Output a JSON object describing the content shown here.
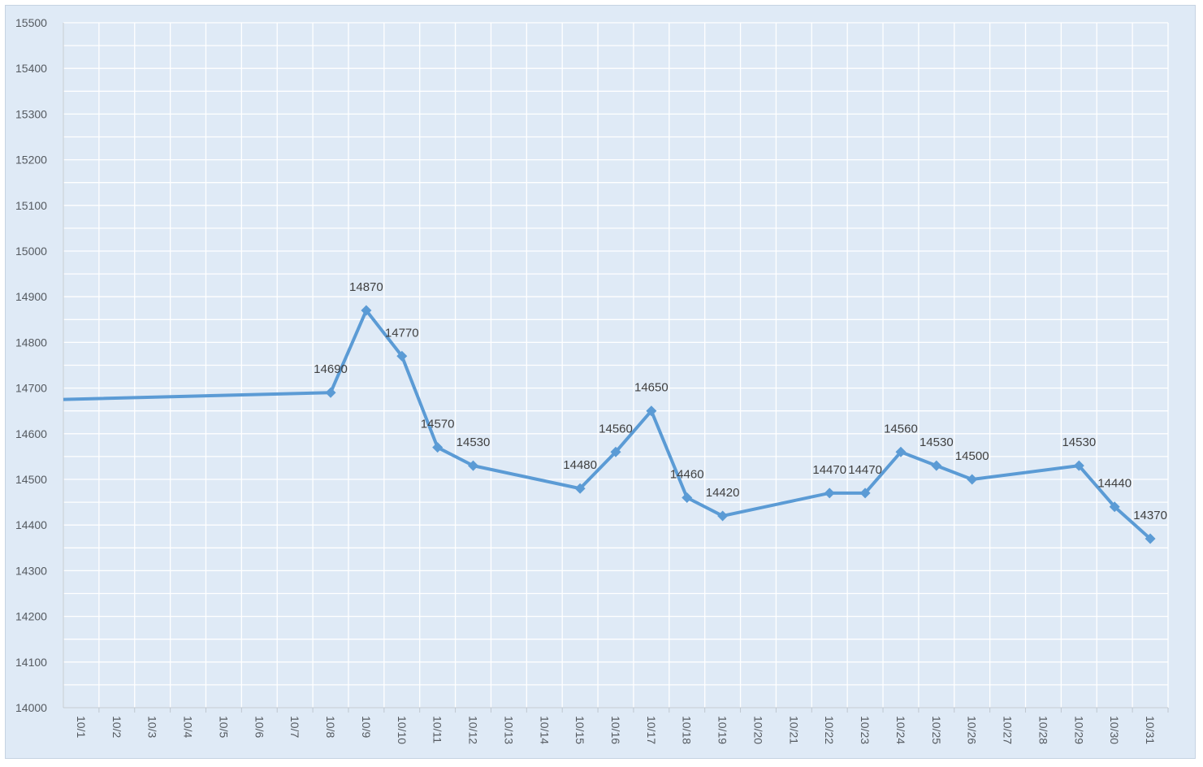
{
  "chart_data": {
    "type": "line",
    "title": "",
    "xlabel": "",
    "ylabel": "",
    "ylim": [
      14000,
      15500
    ],
    "ytick_step": 100,
    "grid": true,
    "legend": "none",
    "colors": {
      "line": "#5b9bd5",
      "background": "#dfeaf6",
      "grid": "#ffffff"
    },
    "categories": [
      "10/1",
      "10/2",
      "10/3",
      "10/4",
      "10/5",
      "10/6",
      "10/7",
      "10/8",
      "10/9",
      "10/10",
      "10/11",
      "10/12",
      "10/13",
      "10/14",
      "10/15",
      "10/16",
      "10/17",
      "10/18",
      "10/19",
      "10/20",
      "10/21",
      "10/22",
      "10/23",
      "10/24",
      "10/25",
      "10/26",
      "10/27",
      "10/28",
      "10/29",
      "10/30",
      "10/31"
    ],
    "start_value": 14675,
    "points": [
      {
        "x": "10/8",
        "y": 14690,
        "label": "14690"
      },
      {
        "x": "10/9",
        "y": 14870,
        "label": "14870"
      },
      {
        "x": "10/10",
        "y": 14770,
        "label": "14770"
      },
      {
        "x": "10/11",
        "y": 14570,
        "label": "14570"
      },
      {
        "x": "10/12",
        "y": 14530,
        "label": "14530"
      },
      {
        "x": "10/15",
        "y": 14480,
        "label": "14480"
      },
      {
        "x": "10/16",
        "y": 14560,
        "label": "14560"
      },
      {
        "x": "10/17",
        "y": 14650,
        "label": "14650"
      },
      {
        "x": "10/18",
        "y": 14460,
        "label": "14460"
      },
      {
        "x": "10/19",
        "y": 14420,
        "label": "14420"
      },
      {
        "x": "10/22",
        "y": 14470,
        "label": "14470"
      },
      {
        "x": "10/23",
        "y": 14470,
        "label": "14470"
      },
      {
        "x": "10/24",
        "y": 14560,
        "label": "14560"
      },
      {
        "x": "10/25",
        "y": 14530,
        "label": "14530"
      },
      {
        "x": "10/26",
        "y": 14500,
        "label": "14500"
      },
      {
        "x": "10/29",
        "y": 14530,
        "label": "14530"
      },
      {
        "x": "10/30",
        "y": 14440,
        "label": "14440"
      },
      {
        "x": "10/31",
        "y": 14370,
        "label": "14370"
      }
    ]
  }
}
